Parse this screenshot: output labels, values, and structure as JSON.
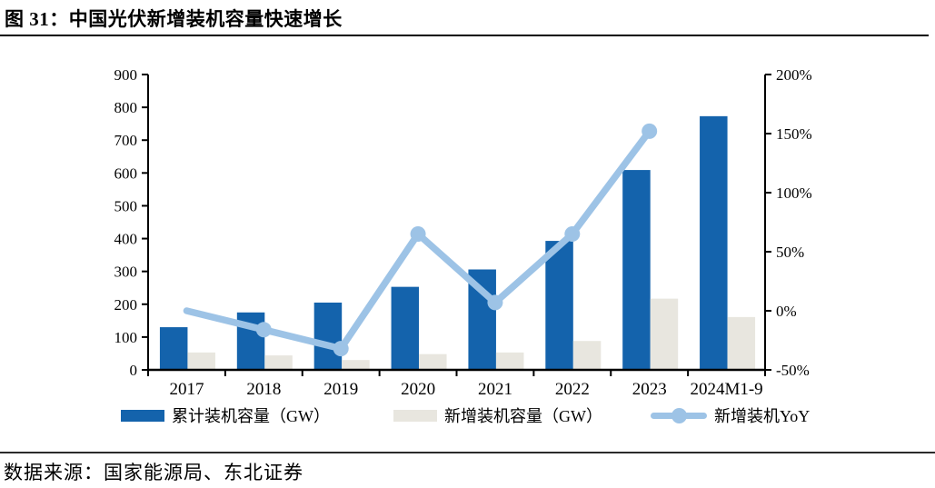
{
  "figure": {
    "title": "图 31：中国光伏新增装机容量快速增长",
    "source": "数据来源：国家能源局、东北证券"
  },
  "colors": {
    "cumulative_bar": "#1463AC",
    "new_bar": "#E8E6DF",
    "yoy_line": "#9DC3E6",
    "axis": "#000000"
  },
  "chart_data": {
    "type": "bar",
    "subtype": "bar+line combo, dual axis",
    "categories": [
      "2017",
      "2018",
      "2019",
      "2020",
      "2021",
      "2022",
      "2023",
      "2024M1-9"
    ],
    "series": [
      {
        "name": "累计装机容量（GW）",
        "type": "bar",
        "axis": "left",
        "color": "#1463AC",
        "values": [
          130,
          175,
          205,
          253,
          306,
          393,
          609,
          773
        ]
      },
      {
        "name": "新增装机容量（GW）",
        "type": "bar",
        "axis": "left",
        "color": "#E8E6DF",
        "values": [
          53,
          44,
          30,
          48,
          53,
          88,
          217,
          161
        ]
      },
      {
        "name": "新增装机YoY",
        "type": "line",
        "axis": "right",
        "color": "#9DC3E6",
        "values": [
          0,
          -16,
          -32,
          65,
          7,
          65,
          152,
          null
        ],
        "markers": [
          false,
          true,
          true,
          true,
          true,
          true,
          true,
          false
        ]
      }
    ],
    "left_axis": {
      "min": 0,
      "max": 900,
      "step": 100,
      "ticks": [
        0,
        100,
        200,
        300,
        400,
        500,
        600,
        700,
        800,
        900
      ]
    },
    "right_axis": {
      "min": -50,
      "max": 200,
      "step": 50,
      "tick_labels": [
        "-50%",
        "0%",
        "50%",
        "100%",
        "150%",
        "200%"
      ]
    },
    "legend_position": "bottom",
    "grid": false
  }
}
